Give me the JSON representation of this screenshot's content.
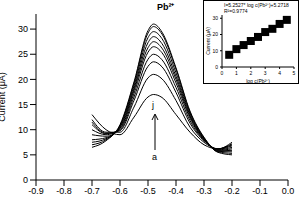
{
  "chart_data": [
    {
      "type": "line",
      "x": [
        -0.7,
        -0.65,
        -0.6,
        -0.55,
        -0.5,
        -0.48,
        -0.45,
        -0.4,
        -0.35,
        -0.3,
        -0.25,
        -0.2
      ],
      "ylabel": "Current (μA)",
      "xlim": [
        -0.9,
        0
      ],
      "xticks": [
        -0.9,
        -0.8,
        -0.7,
        -0.6,
        -0.5,
        -0.4,
        -0.3,
        -0.2,
        -0.1,
        {
          "value": 0,
          "label": "0.0"
        }
      ],
      "ylim": [
        0,
        33
      ],
      "yticks": [
        0,
        5,
        10,
        15,
        20,
        25,
        30
      ],
      "annotations": [
        "Pb²⁺"
      ],
      "series": [
        {
          "name": "a",
          "color": "#000000",
          "values": [
            13,
            10,
            9,
            12.5,
            16.5,
            17,
            16.4,
            13,
            9.5,
            7,
            6.2,
            7.5
          ]
        },
        {
          "color": "#000000",
          "values": [
            12,
            9.5,
            9.5,
            14.5,
            20.3,
            21,
            20.1,
            15.8,
            10.5,
            7.5,
            6.2,
            7.2
          ]
        },
        {
          "color": "#000000",
          "values": [
            11.5,
            9.3,
            9.8,
            15.8,
            22.6,
            23.5,
            22.5,
            17.4,
            11.3,
            7.8,
            6.2,
            7
          ]
        },
        {
          "color": "#000000",
          "values": [
            11,
            9.2,
            10,
            16.5,
            24,
            25,
            23.9,
            18.4,
            11.8,
            7.9,
            6.1,
            6.8
          ]
        },
        {
          "color": "#000000",
          "values": [
            10,
            9,
            10.2,
            17.2,
            25.4,
            26.5,
            25.3,
            19.3,
            12.3,
            8,
            6,
            6.5
          ]
        },
        {
          "color": "#000000",
          "values": [
            9,
            8.7,
            10.3,
            17.8,
            26.3,
            27.5,
            26.2,
            20,
            12.6,
            8.1,
            5.9,
            6.2
          ]
        },
        {
          "color": "#000000",
          "values": [
            8,
            8.4,
            10.5,
            18.2,
            27.3,
            28.5,
            27.1,
            20.6,
            12.9,
            8.2,
            5.8,
            5.9
          ]
        },
        {
          "color": "#000000",
          "values": [
            7.5,
            8.2,
            10.7,
            18.7,
            28.3,
            29.5,
            28.1,
            21.3,
            13.2,
            8.3,
            5.7,
            5.6
          ]
        },
        {
          "color": "#000000",
          "values": [
            7,
            8,
            10.8,
            19.2,
            29.2,
            30.5,
            29,
            22,
            13.5,
            8.4,
            5.6,
            5.3
          ]
        },
        {
          "name": "j",
          "color": "#000000",
          "values": [
            6.5,
            7.8,
            11,
            19.5,
            29.7,
            31,
            29.4,
            22.3,
            13.7,
            8.5,
            5.5,
            5
          ]
        }
      ]
    },
    {
      "type": "scatter",
      "x": [
        0.5,
        1,
        1.5,
        2,
        2.5,
        3,
        3.5,
        4,
        4.5
      ],
      "xlabel": "log c(Pb²⁺)",
      "ylabel": "Current (μA)",
      "xlim": [
        0,
        5
      ],
      "xticks": [
        0,
        1,
        2,
        3,
        4,
        5
      ],
      "ylim": [
        0,
        32
      ],
      "yticks": [
        0,
        10,
        20,
        30
      ],
      "annotations": [
        "I=5.2527* log c(Pb²⁺)+5.2718",
        "R²=0.9774"
      ],
      "series": [
        {
          "type": "scatter",
          "marker": "square",
          "color": "#000000",
          "values": [
            7.5,
            11,
            13.5,
            16,
            18.5,
            21.5,
            23.5,
            26.5,
            29
          ]
        },
        {
          "type": "line",
          "color": "#000000",
          "values": [
            7.9,
            10.52,
            13.15,
            15.78,
            18.4,
            21.03,
            23.66,
            26.28,
            28.91
          ]
        }
      ]
    }
  ]
}
